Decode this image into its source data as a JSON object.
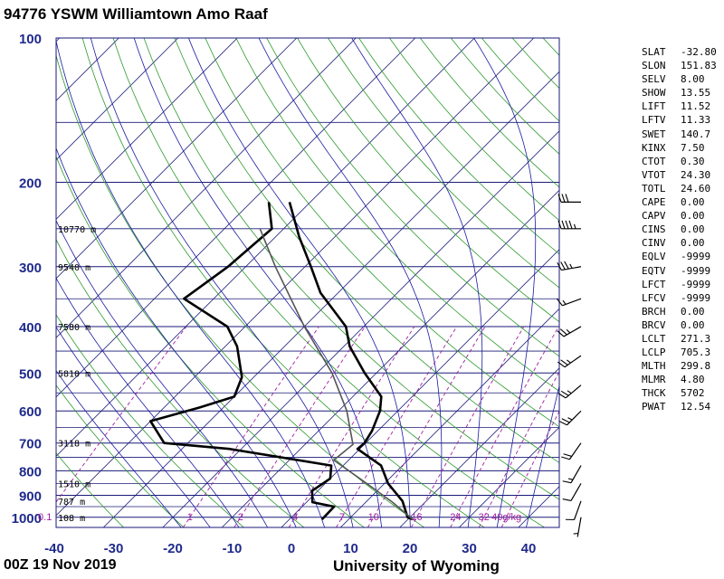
{
  "station_title": "94776 YSWM Williamtown Amo Raaf",
  "footer": {
    "time": "00Z 19 Nov 2019",
    "source": "University of Wyoming"
  },
  "colors": {
    "isobar": "#1a1a7a",
    "isotherm": "#1a1a7a",
    "dry_adiabat": "#2d9a2d",
    "moist_adiabat": "#1a1aa0",
    "mixing_ratio": "#a020a0",
    "sounding": "#000000",
    "parcel": "#555555",
    "axis_labels": "#1f2a8c"
  },
  "indices": [
    {
      "key": "SLAT",
      "value": "-32.80"
    },
    {
      "key": "SLON",
      "value": "151.83"
    },
    {
      "key": "SELV",
      "value": "8.00"
    },
    {
      "key": "SHOW",
      "value": "13.55"
    },
    {
      "key": "LIFT",
      "value": "11.52"
    },
    {
      "key": "LFTV",
      "value": "11.33"
    },
    {
      "key": "SWET",
      "value": "140.7"
    },
    {
      "key": "KINX",
      "value": "7.50"
    },
    {
      "key": "CTOT",
      "value": "0.30"
    },
    {
      "key": "VTOT",
      "value": "24.30"
    },
    {
      "key": "TOTL",
      "value": "24.60"
    },
    {
      "key": "CAPE",
      "value": "0.00"
    },
    {
      "key": "CAPV",
      "value": "0.00"
    },
    {
      "key": "CINS",
      "value": "0.00"
    },
    {
      "key": "CINV",
      "value": "0.00"
    },
    {
      "key": "EQLV",
      "value": "-9999"
    },
    {
      "key": "EQTV",
      "value": "-9999"
    },
    {
      "key": "LFCT",
      "value": "-9999"
    },
    {
      "key": "LFCV",
      "value": "-9999"
    },
    {
      "key": "BRCH",
      "value": "0.00"
    },
    {
      "key": "BRCV",
      "value": "0.00"
    },
    {
      "key": "LCLT",
      "value": "271.3"
    },
    {
      "key": "LCLP",
      "value": "705.3"
    },
    {
      "key": "MLTH",
      "value": "299.8"
    },
    {
      "key": "MLMR",
      "value": "4.80"
    },
    {
      "key": "THCK",
      "value": "5702"
    },
    {
      "key": "PWAT",
      "value": "12.54"
    }
  ],
  "chart_data": {
    "type": "skew-t",
    "xlabel_ticks": [
      -40,
      -30,
      -20,
      -10,
      0,
      10,
      20,
      30,
      40
    ],
    "pressure_labels": [
      100,
      200,
      300,
      400,
      500,
      600,
      700,
      800,
      900,
      1000
    ],
    "xlim": [
      -40,
      45
    ],
    "ylim": [
      1050,
      100
    ],
    "height_labels": [
      {
        "p": 250,
        "text": "10770 m"
      },
      {
        "p": 300,
        "text": "9540 m"
      },
      {
        "p": 400,
        "text": "7580 m"
      },
      {
        "p": 500,
        "text": "5810 m"
      },
      {
        "p": 700,
        "text": "3118 m"
      },
      {
        "p": 850,
        "text": "1510 m"
      },
      {
        "p": 925,
        "text": "787 m"
      },
      {
        "p": 1000,
        "text": "108 m"
      }
    ],
    "mixing_ratio_labels": [
      {
        "w": 0.1,
        "text": "0.1"
      },
      {
        "w": 1,
        "text": "1"
      },
      {
        "w": 2,
        "text": "2"
      },
      {
        "w": 4,
        "text": "4"
      },
      {
        "w": 7,
        "text": "7"
      },
      {
        "w": 10,
        "text": "10"
      },
      {
        "w": 16,
        "text": "16"
      },
      {
        "w": 24,
        "text": "24"
      },
      {
        "w": 32,
        "text": "32"
      },
      {
        "w": 40,
        "text": "40g/kg"
      }
    ],
    "series": [
      {
        "name": "",
        "kind": "temperature",
        "points": [
          {
            "p": 1010,
            "t": 20.8
          },
          {
            "p": 1000,
            "t": 19.6
          },
          {
            "p": 925,
            "t": 16.0
          },
          {
            "p": 850,
            "t": 10.6
          },
          {
            "p": 780,
            "t": 6.4
          },
          {
            "p": 720,
            "t": -0.4
          },
          {
            "p": 700,
            "t": -0.2
          },
          {
            "p": 660,
            "t": -1.0
          },
          {
            "p": 600,
            "t": -3.0
          },
          {
            "p": 560,
            "t": -5.2
          },
          {
            "p": 500,
            "t": -12.0
          },
          {
            "p": 440,
            "t": -19.0
          },
          {
            "p": 400,
            "t": -23.0
          },
          {
            "p": 340,
            "t": -33.0
          },
          {
            "p": 300,
            "t": -39.0
          },
          {
            "p": 260,
            "t": -46.0
          },
          {
            "p": 220,
            "t": -53.5
          }
        ]
      },
      {
        "name": "",
        "kind": "dewpoint",
        "points": [
          {
            "p": 1010,
            "t": 5.5
          },
          {
            "p": 1000,
            "t": 5.5
          },
          {
            "p": 950,
            "t": 5.4
          },
          {
            "p": 930,
            "t": 1.0
          },
          {
            "p": 880,
            "t": -1.0
          },
          {
            "p": 830,
            "t": 0.0
          },
          {
            "p": 780,
            "t": -2.0
          },
          {
            "p": 720,
            "t": -22.0
          },
          {
            "p": 700,
            "t": -34.0
          },
          {
            "p": 630,
            "t": -40.0
          },
          {
            "p": 590,
            "t": -34.0
          },
          {
            "p": 560,
            "t": -30.0
          },
          {
            "p": 510,
            "t": -32.0
          },
          {
            "p": 440,
            "t": -38.0
          },
          {
            "p": 400,
            "t": -43.0
          },
          {
            "p": 350,
            "t": -55.0
          },
          {
            "p": 300,
            "t": -53.0
          },
          {
            "p": 250,
            "t": -52.0
          },
          {
            "p": 220,
            "t": -57.0
          }
        ]
      },
      {
        "name": "",
        "kind": "parcel",
        "points": [
          {
            "p": 1010,
            "t": 20.8
          },
          {
            "p": 930,
            "t": 14.5
          },
          {
            "p": 850,
            "t": 7.0
          },
          {
            "p": 760,
            "t": -2.5
          },
          {
            "p": 705,
            "t": -1.9
          },
          {
            "p": 600,
            "t": -8.6
          },
          {
            "p": 500,
            "t": -17.5
          },
          {
            "p": 400,
            "t": -30.0
          },
          {
            "p": 300,
            "t": -45.0
          },
          {
            "p": 250,
            "t": -54.0
          }
        ]
      }
    ],
    "wind_barbs": [
      {
        "p": 220,
        "dir": 270,
        "speed_kt": 30
      },
      {
        "p": 250,
        "dir": 270,
        "speed_kt": 45
      },
      {
        "p": 300,
        "dir": 260,
        "speed_kt": 35
      },
      {
        "p": 350,
        "dir": 250,
        "speed_kt": 15
      },
      {
        "p": 400,
        "dir": 240,
        "speed_kt": 25
      },
      {
        "p": 460,
        "dir": 235,
        "speed_kt": 25
      },
      {
        "p": 530,
        "dir": 230,
        "speed_kt": 25
      },
      {
        "p": 600,
        "dir": 225,
        "speed_kt": 25
      },
      {
        "p": 700,
        "dir": 215,
        "speed_kt": 20
      },
      {
        "p": 780,
        "dir": 210,
        "speed_kt": 15
      },
      {
        "p": 850,
        "dir": 210,
        "speed_kt": 10
      },
      {
        "p": 925,
        "dir": 200,
        "speed_kt": 10
      },
      {
        "p": 1000,
        "dir": 190,
        "speed_kt": 5
      }
    ]
  }
}
